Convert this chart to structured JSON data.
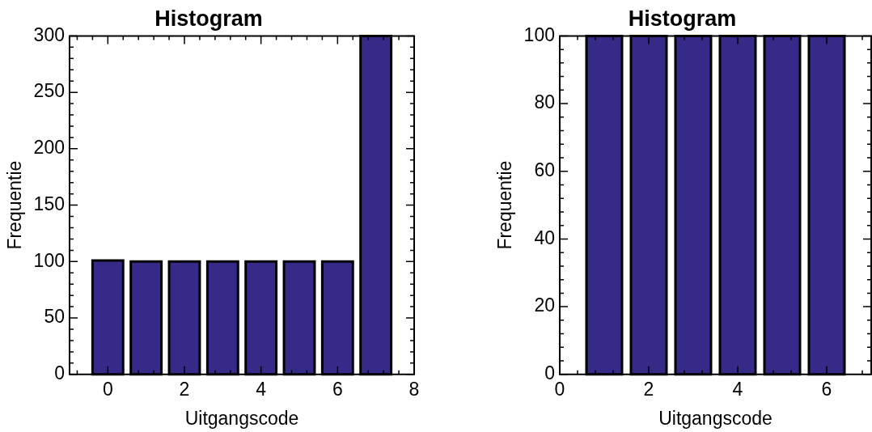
{
  "chart_data": [
    {
      "type": "bar",
      "title": "Histogram",
      "xlabel": "Uitgangscode",
      "ylabel": "Frequentie",
      "x": [
        0,
        1,
        2,
        3,
        4,
        5,
        6,
        7
      ],
      "values": [
        101,
        100,
        100,
        100,
        100,
        100,
        100,
        300
      ],
      "color": "#352a87",
      "xlim": [
        -1,
        8
      ],
      "xticks": [
        0,
        2,
        4,
        6,
        8
      ],
      "ylim": [
        0,
        300
      ],
      "yticks": [
        0,
        50,
        100,
        150,
        200,
        250,
        300
      ]
    },
    {
      "type": "bar",
      "title": "Histogram",
      "xlabel": "Uitgangscode",
      "ylabel": "Frequentie",
      "x": [
        1,
        2,
        3,
        4,
        5,
        6
      ],
      "values": [
        100,
        100,
        100,
        100,
        100,
        100
      ],
      "color": "#352a87",
      "xlim": [
        0,
        7
      ],
      "xticks": [
        0,
        2,
        4,
        6
      ],
      "ylim": [
        0,
        100
      ],
      "yticks": [
        0,
        20,
        40,
        60,
        80,
        100
      ]
    }
  ]
}
